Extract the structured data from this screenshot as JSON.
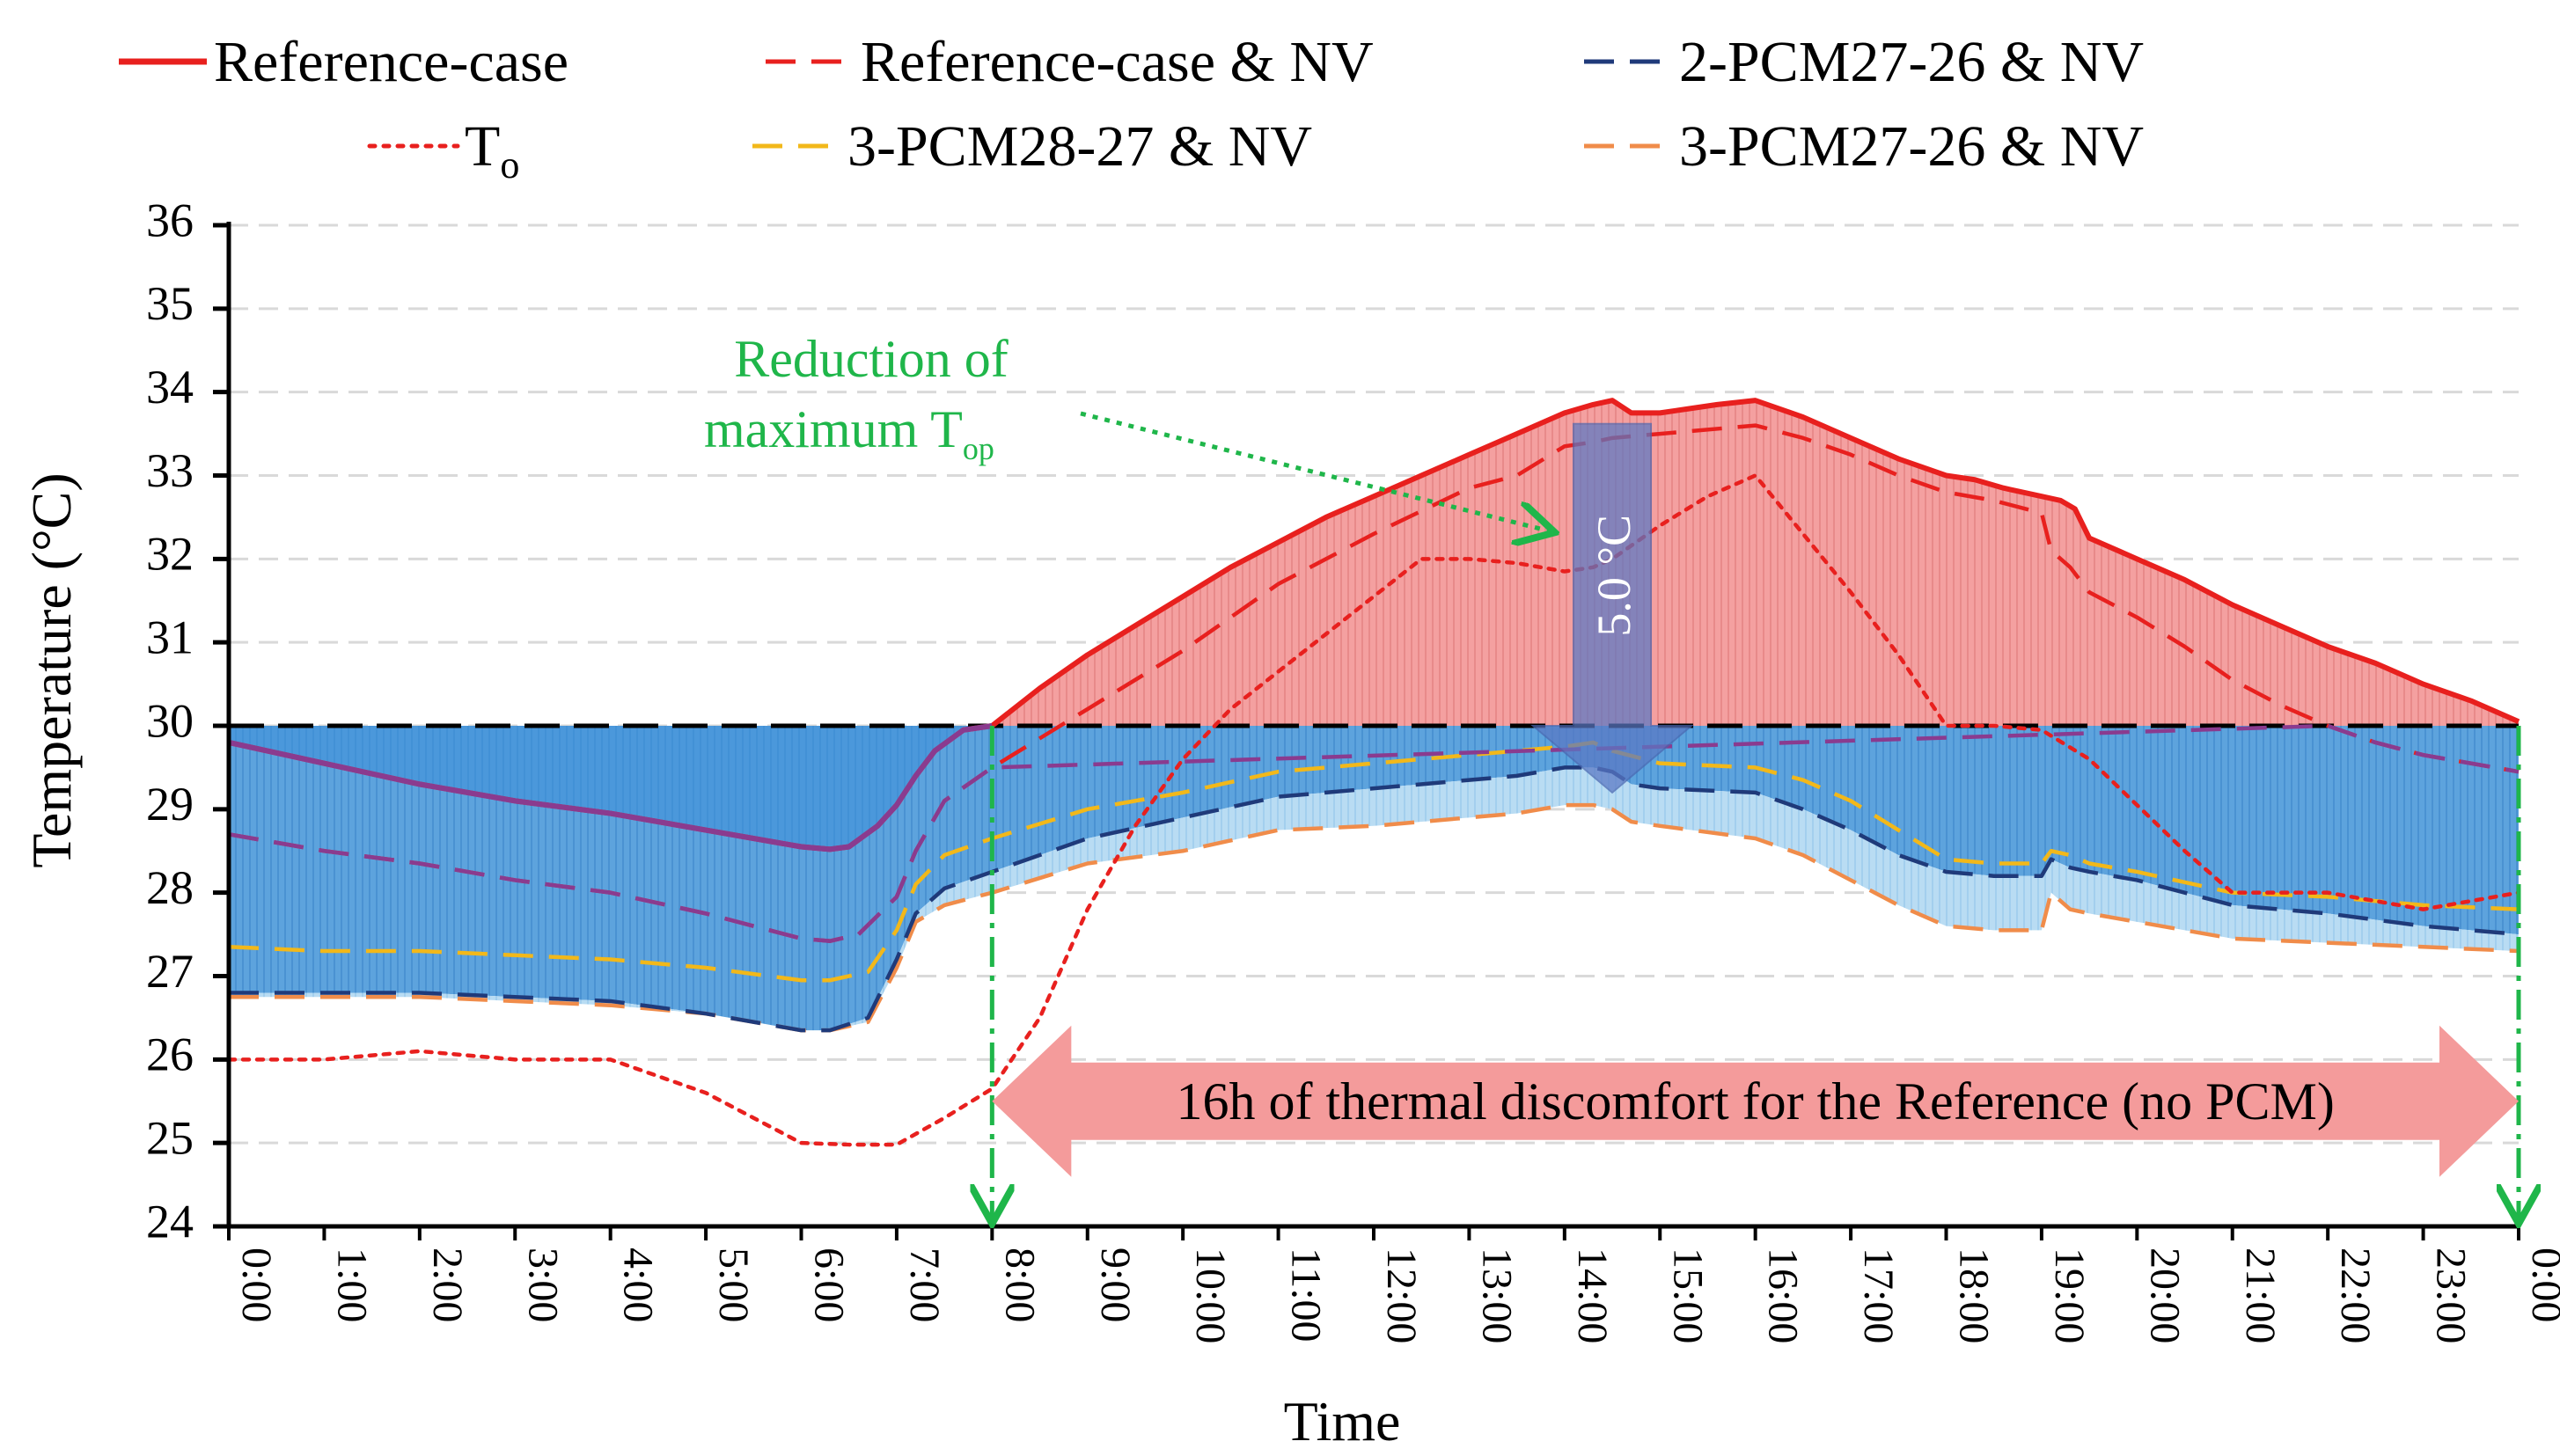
{
  "chart_data": {
    "type": "line",
    "title": "",
    "xlabel": "Time",
    "ylabel": "Temperature (°C)",
    "ylim": [
      24,
      36
    ],
    "xlim": [
      0,
      24
    ],
    "yticks": [
      "24",
      "25",
      "26",
      "27",
      "28",
      "29",
      "30",
      "31",
      "32",
      "33",
      "34",
      "35",
      "36"
    ],
    "xticks": [
      "0:00",
      "1:00",
      "2:00",
      "3:00",
      "4:00",
      "5:00",
      "6:00",
      "7:00",
      "8:00",
      "9:00",
      "10:00",
      "11:00",
      "12:00",
      "13:00",
      "14:00",
      "15:00",
      "16:00",
      "17:00",
      "18:00",
      "19:00",
      "20:00",
      "21:00",
      "22:00",
      "23:00",
      "0:00"
    ],
    "grid": true,
    "legend_position": "top",
    "comfort_limit": 30,
    "series": [
      {
        "name": "Reference-case",
        "color": "#e8201e",
        "style": "solid",
        "x": [
          0,
          1,
          2,
          3,
          4,
          5,
          6,
          6.3,
          6.5,
          6.8,
          7,
          7.2,
          7.4,
          7.7,
          8,
          8.5,
          9,
          9.5,
          10,
          10.5,
          11,
          11.5,
          12,
          12.5,
          13,
          13.3,
          13.6,
          14,
          14.3,
          14.5,
          14.7,
          15,
          15.3,
          15.6,
          16,
          16.5,
          17,
          17.5,
          18,
          18.3,
          18.6,
          19,
          19.2,
          19.35,
          19.5,
          20,
          20.5,
          21,
          21.5,
          22,
          22.5,
          23,
          23.5,
          24
        ],
        "values": [
          29.8,
          29.55,
          29.3,
          29.1,
          28.95,
          28.75,
          28.55,
          28.52,
          28.55,
          28.8,
          29.05,
          29.4,
          29.7,
          29.95,
          30.0,
          30.45,
          30.85,
          31.2,
          31.55,
          31.9,
          32.2,
          32.5,
          32.75,
          33.0,
          33.25,
          33.4,
          33.55,
          33.75,
          33.85,
          33.9,
          33.75,
          33.75,
          33.8,
          33.85,
          33.9,
          33.7,
          33.45,
          33.2,
          33.0,
          32.95,
          32.85,
          32.75,
          32.7,
          32.6,
          32.25,
          32.0,
          31.75,
          31.45,
          31.2,
          30.95,
          30.75,
          30.5,
          30.3,
          30.05
        ]
      },
      {
        "name": "Reference-case & NV",
        "color": "#e8201e",
        "style": "dashed",
        "x": [
          0,
          1,
          2,
          3,
          4,
          5,
          6,
          6.3,
          6.6,
          7,
          7.2,
          7.5,
          8,
          9,
          10,
          11,
          12,
          13,
          13.5,
          14,
          14.3,
          14.5,
          15,
          16,
          16.5,
          17,
          17.5,
          18,
          18.5,
          19,
          19.1,
          19.3,
          19.5,
          20,
          20.5,
          21,
          21.5,
          22,
          22.5,
          23,
          24
        ],
        "values": [
          28.7,
          28.5,
          28.35,
          28.15,
          28.0,
          27.75,
          27.45,
          27.42,
          27.5,
          27.95,
          28.5,
          29.1,
          29.5,
          30.2,
          30.9,
          31.7,
          32.3,
          32.85,
          33.0,
          33.35,
          33.4,
          33.45,
          33.5,
          33.6,
          33.45,
          33.25,
          33.0,
          32.8,
          32.7,
          32.55,
          32.1,
          31.9,
          31.6,
          31.3,
          30.95,
          30.55,
          30.25,
          30.0,
          29.8,
          29.65,
          29.45
        ]
      },
      {
        "name": "2-PCM27-26 & NV",
        "color": "#1f3a7a",
        "style": "dashed",
        "x": [
          0,
          1,
          2,
          3,
          4,
          5,
          6,
          6.3,
          6.7,
          7,
          7.2,
          7.5,
          8,
          9,
          10,
          11,
          12,
          13,
          13.5,
          14,
          14.3,
          14.5,
          14.7,
          15,
          16,
          16.5,
          17,
          17.5,
          18,
          18.5,
          19,
          19.1,
          19.3,
          19.5,
          20,
          21,
          22,
          23,
          24
        ],
        "values": [
          26.8,
          26.8,
          26.8,
          26.75,
          26.7,
          26.55,
          26.35,
          26.35,
          26.5,
          27.2,
          27.75,
          28.05,
          28.25,
          28.65,
          28.9,
          29.15,
          29.25,
          29.35,
          29.4,
          29.5,
          29.5,
          29.45,
          29.3,
          29.25,
          29.2,
          29.0,
          28.75,
          28.45,
          28.25,
          28.2,
          28.2,
          28.4,
          28.3,
          28.25,
          28.15,
          27.85,
          27.75,
          27.6,
          27.5
        ]
      },
      {
        "name": "To",
        "color": "#e8201e",
        "style": "dotted",
        "x": [
          0,
          1,
          2,
          3,
          4,
          4.5,
          5,
          5.5,
          6,
          6.5,
          7,
          7.5,
          8,
          8.5,
          9,
          9.5,
          10,
          10.5,
          11,
          11.5,
          12,
          12.5,
          13,
          13.5,
          14,
          14.3,
          14.5,
          15,
          15.5,
          16,
          16.5,
          17,
          17.5,
          18,
          18.5,
          19,
          19.5,
          20,
          20.5,
          21,
          22,
          23,
          24
        ],
        "values": [
          26.0,
          26.0,
          26.1,
          26.0,
          26.0,
          25.8,
          25.6,
          25.3,
          25.0,
          24.98,
          24.98,
          25.3,
          25.65,
          26.5,
          27.8,
          28.8,
          29.6,
          30.2,
          30.65,
          31.1,
          31.55,
          32.0,
          32.0,
          31.95,
          31.85,
          31.9,
          32.0,
          32.4,
          32.75,
          33.0,
          32.3,
          31.6,
          30.85,
          30.0,
          30.0,
          29.95,
          29.6,
          29.05,
          28.5,
          28.0,
          28.0,
          27.8,
          28.0
        ]
      },
      {
        "name": "3-PCM28-27 & NV",
        "color": "#f2b81a",
        "style": "dashed",
        "x": [
          0,
          1,
          2,
          3,
          4,
          5,
          6,
          6.3,
          6.7,
          7,
          7.2,
          7.5,
          8,
          9,
          10,
          11,
          12,
          13,
          13.5,
          14,
          14.3,
          14.5,
          15,
          16,
          16.5,
          17,
          17.5,
          18,
          18.5,
          19,
          19.1,
          19.3,
          19.5,
          20,
          21,
          22,
          23,
          24
        ],
        "values": [
          27.35,
          27.3,
          27.3,
          27.25,
          27.2,
          27.1,
          26.95,
          26.95,
          27.05,
          27.55,
          28.1,
          28.45,
          28.65,
          29.0,
          29.2,
          29.45,
          29.55,
          29.65,
          29.7,
          29.75,
          29.8,
          29.7,
          29.55,
          29.5,
          29.35,
          29.1,
          28.75,
          28.4,
          28.35,
          28.35,
          28.5,
          28.45,
          28.35,
          28.25,
          28.0,
          27.95,
          27.85,
          27.8
        ]
      },
      {
        "name": "3-PCM27-26 & NV",
        "color": "#f08c4a",
        "style": "dashed",
        "x": [
          0,
          1,
          2,
          3,
          4,
          5,
          6,
          6.3,
          6.7,
          7,
          7.2,
          7.5,
          8,
          9,
          10,
          11,
          12,
          13,
          13.5,
          14,
          14.3,
          14.5,
          14.7,
          15,
          16,
          16.5,
          17,
          17.5,
          18,
          18.5,
          19,
          19.1,
          19.3,
          19.5,
          20,
          21,
          22,
          23,
          24
        ],
        "values": [
          26.75,
          26.75,
          26.75,
          26.7,
          26.65,
          26.55,
          26.35,
          26.35,
          26.45,
          27.1,
          27.65,
          27.85,
          28.0,
          28.35,
          28.5,
          28.75,
          28.8,
          28.9,
          28.95,
          29.05,
          29.05,
          29.0,
          28.85,
          28.8,
          28.65,
          28.45,
          28.15,
          27.85,
          27.6,
          27.55,
          27.55,
          28.0,
          27.8,
          27.75,
          27.65,
          27.45,
          27.4,
          27.35,
          27.3
        ]
      }
    ],
    "annotations": {
      "reduction_line1": "Reduction of",
      "reduction_line2_main": "maximum T",
      "reduction_line2_sub": "op",
      "reduction_value": "5.0 °C",
      "discomfort_label": "16h of thermal discomfort for the Reference (no PCM)",
      "discomfort_start": 8,
      "discomfort_end": 24
    }
  }
}
